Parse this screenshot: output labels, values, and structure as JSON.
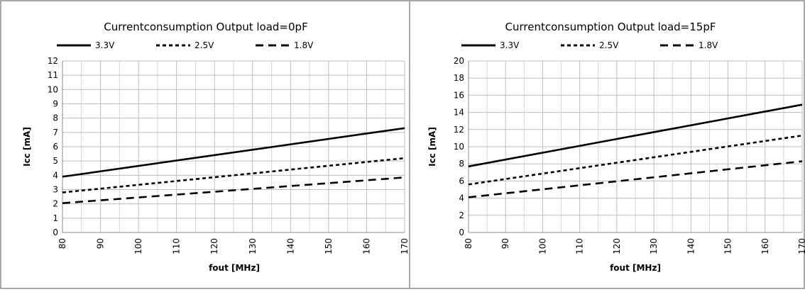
{
  "chart_data": [
    {
      "type": "line",
      "title": "Currentconsumption Output load=0pF",
      "xlabel": "fout [MHz]",
      "ylabel": "Icc [mA]",
      "xlim": [
        80,
        170
      ],
      "ylim": [
        0,
        12
      ],
      "x_ticks": [
        "80",
        "90",
        "100",
        "110",
        "120",
        "130",
        "140",
        "150",
        "160",
        "170"
      ],
      "y_ticks": [
        "0",
        "1",
        "2",
        "3",
        "4",
        "5",
        "6",
        "7",
        "8",
        "9",
        "10",
        "11",
        "12"
      ],
      "grid": true,
      "legend_position": "top",
      "series": [
        {
          "name": "3.3V",
          "x": [
            80,
            170
          ],
          "values": [
            3.9,
            7.3
          ],
          "style": "solid"
        },
        {
          "name": "2.5V",
          "x": [
            80,
            170
          ],
          "values": [
            2.8,
            5.2
          ],
          "style": "short-dash"
        },
        {
          "name": "1.8V",
          "x": [
            80,
            170
          ],
          "values": [
            2.05,
            3.85
          ],
          "style": "long-dash"
        }
      ]
    },
    {
      "type": "line",
      "title": "Currentconsumption Output load=15pF",
      "xlabel": "fout [MHz]",
      "ylabel": "Icc [mA]",
      "xlim": [
        80,
        170
      ],
      "ylim": [
        0,
        20
      ],
      "x_ticks": [
        "80",
        "90",
        "100",
        "110",
        "120",
        "130",
        "140",
        "150",
        "160",
        "170"
      ],
      "y_ticks": [
        "0",
        "2",
        "4",
        "6",
        "8",
        "10",
        "12",
        "14",
        "16",
        "18",
        "20"
      ],
      "grid": true,
      "legend_position": "top",
      "series": [
        {
          "name": "3.3V",
          "x": [
            80,
            170
          ],
          "values": [
            7.7,
            14.9
          ],
          "style": "solid"
        },
        {
          "name": "2.5V",
          "x": [
            80,
            170
          ],
          "values": [
            5.6,
            11.3
          ],
          "style": "short-dash"
        },
        {
          "name": "1.8V",
          "x": [
            80,
            170
          ],
          "values": [
            4.1,
            8.3
          ],
          "style": "long-dash"
        }
      ]
    }
  ]
}
